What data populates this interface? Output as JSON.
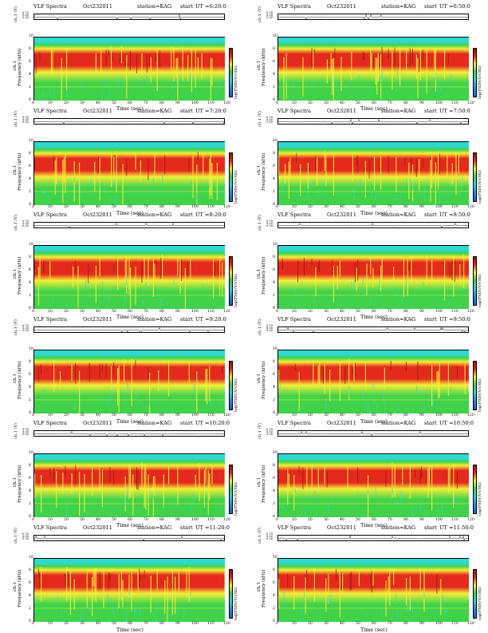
{
  "panel_header": {
    "title": "VLF Spectra",
    "station": "station=KAG",
    "start_prefix": "start",
    "ut_prefix": "UT ="
  },
  "axis_labels": {
    "ch_label": "ch.1 (V)",
    "freq_label": "Frequency (kHz)",
    "ch1_inline": "ch.1",
    "time_label": "Time (sec)",
    "colorbar_label": "log(PSD)(V/√Hz)"
  },
  "colors": {
    "low": "#1f5fd1",
    "cyan": "#2fd8d0",
    "green": "#3fd24a",
    "yellow": "#f3ee3a",
    "red": "#e42a1c",
    "darkred": "#8f1610"
  },
  "chart_data": [
    {
      "type": "heatmap",
      "date": "Oct232011",
      "start_time": "6:20:0",
      "xlabel": "Time (sec)",
      "ylabel": "Frequency (kHz)",
      "xlim": [
        0,
        120
      ],
      "ylim": [
        0,
        10
      ],
      "x_ticks": [
        "0",
        "10",
        "20",
        "30",
        "40",
        "50",
        "60",
        "70",
        "80",
        "90",
        "100",
        "110",
        "120"
      ],
      "y_ticks": [
        "0",
        "2",
        "4",
        "6",
        "8",
        "10"
      ],
      "timeseries_ticks": [
        "0.70",
        "0.50",
        "0.30"
      ]
    },
    {
      "type": "heatmap",
      "date": "Oct232011",
      "start_time": "6:50:0",
      "xlabel": "Time (sec)",
      "ylabel": "Frequency (kHz)",
      "xlim": [
        0,
        120
      ],
      "ylim": [
        0,
        10
      ],
      "x_ticks": [
        "0",
        "10",
        "20",
        "30",
        "40",
        "50",
        "60",
        "70",
        "80",
        "90",
        "100",
        "110",
        "120"
      ],
      "y_ticks": [
        "0",
        "2",
        "4",
        "6",
        "8",
        "10"
      ],
      "timeseries_ticks": [
        "0.70",
        "0.50",
        "0.30"
      ]
    },
    {
      "type": "heatmap",
      "date": "Oct232011",
      "start_time": "7:20:0",
      "xlabel": "Time (sec)",
      "ylabel": "Frequency (kHz)",
      "xlim": [
        0,
        120
      ],
      "ylim": [
        0,
        10
      ],
      "x_ticks": [
        "0",
        "10",
        "20",
        "30",
        "40",
        "50",
        "60",
        "70",
        "80",
        "90",
        "100",
        "110",
        "120"
      ],
      "y_ticks": [
        "0",
        "2",
        "4",
        "6",
        "8",
        "10"
      ],
      "timeseries_ticks": [
        "0.70",
        "0.50",
        "0.30"
      ]
    },
    {
      "type": "heatmap",
      "date": "Oct232011",
      "start_time": "7:50:0",
      "xlabel": "Time (sec)",
      "ylabel": "Frequency (kHz)",
      "xlim": [
        0,
        120
      ],
      "ylim": [
        0,
        10
      ],
      "x_ticks": [
        "0",
        "10",
        "20",
        "30",
        "40",
        "50",
        "60",
        "70",
        "80",
        "90",
        "100",
        "110",
        "120"
      ],
      "y_ticks": [
        "0",
        "2",
        "4",
        "6",
        "8",
        "10"
      ],
      "timeseries_ticks": [
        "0.70",
        "0.50",
        "0.30"
      ]
    },
    {
      "type": "heatmap",
      "date": "Oct232011",
      "start_time": "8:20:0",
      "xlabel": "Time (sec)",
      "ylabel": "Frequency (kHz)",
      "xlim": [
        0,
        120
      ],
      "ylim": [
        0,
        10
      ],
      "x_ticks": [
        "0",
        "10",
        "20",
        "30",
        "40",
        "50",
        "60",
        "70",
        "80",
        "90",
        "100",
        "110",
        "120"
      ],
      "y_ticks": [
        "0",
        "2",
        "4",
        "6",
        "8",
        "10"
      ],
      "timeseries_ticks": [
        "0.70",
        "0.50",
        "0.30"
      ]
    },
    {
      "type": "heatmap",
      "date": "Oct232011",
      "start_time": "8:50:0",
      "xlabel": "Time (sec)",
      "ylabel": "Frequency (kHz)",
      "xlim": [
        0,
        120
      ],
      "ylim": [
        0,
        10
      ],
      "x_ticks": [
        "0",
        "10",
        "20",
        "30",
        "40",
        "50",
        "60",
        "70",
        "80",
        "90",
        "100",
        "110",
        "120"
      ],
      "y_ticks": [
        "0",
        "2",
        "4",
        "6",
        "8",
        "10"
      ],
      "timeseries_ticks": [
        "0.70",
        "0.50",
        "0.30"
      ]
    },
    {
      "type": "heatmap",
      "date": "Oct232011",
      "start_time": "9:20:0",
      "xlabel": "Time (sec)",
      "ylabel": "Frequency (kHz)",
      "xlim": [
        0,
        120
      ],
      "ylim": [
        0,
        10
      ],
      "x_ticks": [
        "0",
        "10",
        "20",
        "30",
        "40",
        "50",
        "60",
        "70",
        "80",
        "90",
        "100",
        "110",
        "120"
      ],
      "y_ticks": [
        "0",
        "2",
        "4",
        "6",
        "8",
        "10"
      ],
      "timeseries_ticks": [
        "0.70",
        "0.50",
        "0.30"
      ]
    },
    {
      "type": "heatmap",
      "date": "Oct232011",
      "start_time": "9:50:0",
      "xlabel": "Time (sec)",
      "ylabel": "Frequency (kHz)",
      "xlim": [
        0,
        120
      ],
      "ylim": [
        0,
        10
      ],
      "x_ticks": [
        "0",
        "10",
        "20",
        "30",
        "40",
        "50",
        "60",
        "70",
        "80",
        "90",
        "100",
        "110",
        "120"
      ],
      "y_ticks": [
        "0",
        "2",
        "4",
        "6",
        "8",
        "10"
      ],
      "timeseries_ticks": [
        "0.70",
        "0.50",
        "0.30"
      ]
    },
    {
      "type": "heatmap",
      "date": "Oct232011",
      "start_time": "10:20:0",
      "xlabel": "Time (sec)",
      "ylabel": "Frequency (kHz)",
      "xlim": [
        0,
        120
      ],
      "ylim": [
        0,
        10
      ],
      "x_ticks": [
        "0",
        "10",
        "20",
        "30",
        "40",
        "50",
        "60",
        "70",
        "80",
        "90",
        "100",
        "110",
        "120"
      ],
      "y_ticks": [
        "0",
        "2",
        "4",
        "6",
        "8",
        "10"
      ],
      "timeseries_ticks": [
        "0.70",
        "0.50",
        "0.30"
      ]
    },
    {
      "type": "heatmap",
      "date": "Oct232011",
      "start_time": "10:50:0",
      "xlabel": "Time (sec)",
      "ylabel": "Frequency (kHz)",
      "xlim": [
        0,
        120
      ],
      "ylim": [
        0,
        10
      ],
      "x_ticks": [
        "0",
        "10",
        "20",
        "30",
        "40",
        "50",
        "60",
        "70",
        "80",
        "90",
        "100",
        "110",
        "120"
      ],
      "y_ticks": [
        "0",
        "2",
        "4",
        "6",
        "8",
        "10"
      ],
      "timeseries_ticks": [
        "0.70",
        "0.50",
        "0.30"
      ]
    },
    {
      "type": "heatmap",
      "date": "Oct232011",
      "start_time": "11:20:0",
      "xlabel": "Time (sec)",
      "ylabel": "Frequency (kHz)",
      "xlim": [
        0,
        120
      ],
      "ylim": [
        0,
        10
      ],
      "x_ticks": [
        "0",
        "10",
        "20",
        "30",
        "40",
        "50",
        "60",
        "70",
        "80",
        "90",
        "100",
        "110",
        "120"
      ],
      "y_ticks": [
        "0",
        "2",
        "4",
        "6",
        "8",
        "10"
      ],
      "timeseries_ticks": [
        "0.70",
        "0.50",
        "0.30"
      ]
    },
    {
      "type": "heatmap",
      "date": "Oct232011",
      "start_time": "11:50:0",
      "xlabel": "Time (sec)",
      "ylabel": "Frequency (kHz)",
      "xlim": [
        0,
        120
      ],
      "ylim": [
        0,
        10
      ],
      "x_ticks": [
        "0",
        "10",
        "20",
        "30",
        "40",
        "50",
        "60",
        "70",
        "80",
        "90",
        "100",
        "110",
        "120"
      ],
      "y_ticks": [
        "0",
        "2",
        "4",
        "6",
        "8",
        "10"
      ],
      "timeseries_ticks": [
        "0.70",
        "0.50",
        "0.30"
      ]
    }
  ]
}
